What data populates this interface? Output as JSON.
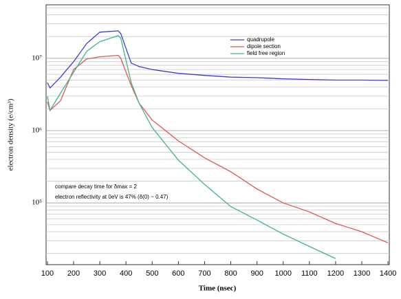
{
  "chart_data": {
    "type": "line",
    "xlabel": "Time (nsec)",
    "ylabel": "electron density (e/cm³)",
    "annotations": [
      "compare decay time for δmax = 2",
      "electron reflectivity at 0eV is 47% (δ(0) ~ 0.47)"
    ],
    "x": [
      100,
      110,
      150,
      200,
      250,
      300,
      370,
      380,
      420,
      450,
      500,
      600,
      700,
      800,
      900,
      1000,
      1100,
      1200,
      1300,
      1400
    ],
    "series": [
      {
        "name": "quadrupole",
        "color": "#3b3bd0",
        "values": [
          4600000,
          3900000,
          5500000,
          9000000,
          16000000,
          23000000,
          24000000,
          22000000,
          8600000,
          7700000,
          7000000,
          6200000,
          5800000,
          5500000,
          5400000,
          5200000,
          5100000,
          5000000,
          5000000,
          4950000
        ]
      },
      {
        "name": "dipole section",
        "color": "#e05555",
        "values": [
          2500000,
          1900000,
          2600000,
          7000000,
          9800000,
          10500000,
          11000000,
          10000000,
          4200000,
          2400000,
          1400000,
          720000,
          420000,
          270000,
          156000,
          100000,
          75000,
          52000,
          40000,
          28000
        ]
      },
      {
        "name": "field free region",
        "color": "#3fb58a",
        "values": [
          3000000,
          1900000,
          3300000,
          6400000,
          12500000,
          17000000,
          20600000,
          19000000,
          4600000,
          2400000,
          1100000,
          390000,
          180000,
          89000,
          58000,
          37000,
          25000,
          17000,
          null,
          null
        ]
      }
    ],
    "xlim": [
      95,
      1405
    ],
    "xticks": [
      100,
      200,
      300,
      400,
      500,
      600,
      700,
      800,
      900,
      1000,
      1100,
      1200,
      1300,
      1400
    ],
    "ylim": [
      14000,
      55000000
    ],
    "log_y": true,
    "yticks": [
      {
        "value": 100000,
        "label": "10⁵"
      },
      {
        "value": 1000000,
        "label": "10⁶"
      },
      {
        "value": 10000000,
        "label": "10⁷"
      }
    ],
    "y_minor_ticks": [
      20000,
      30000,
      40000,
      50000,
      60000,
      70000,
      80000,
      90000,
      200000,
      300000,
      400000,
      500000,
      600000,
      700000,
      800000,
      900000,
      2000000,
      3000000,
      4000000,
      5000000,
      6000000,
      7000000,
      8000000,
      9000000,
      20000000,
      30000000,
      40000000,
      50000000
    ],
    "grid": true,
    "legend": "upper right"
  }
}
